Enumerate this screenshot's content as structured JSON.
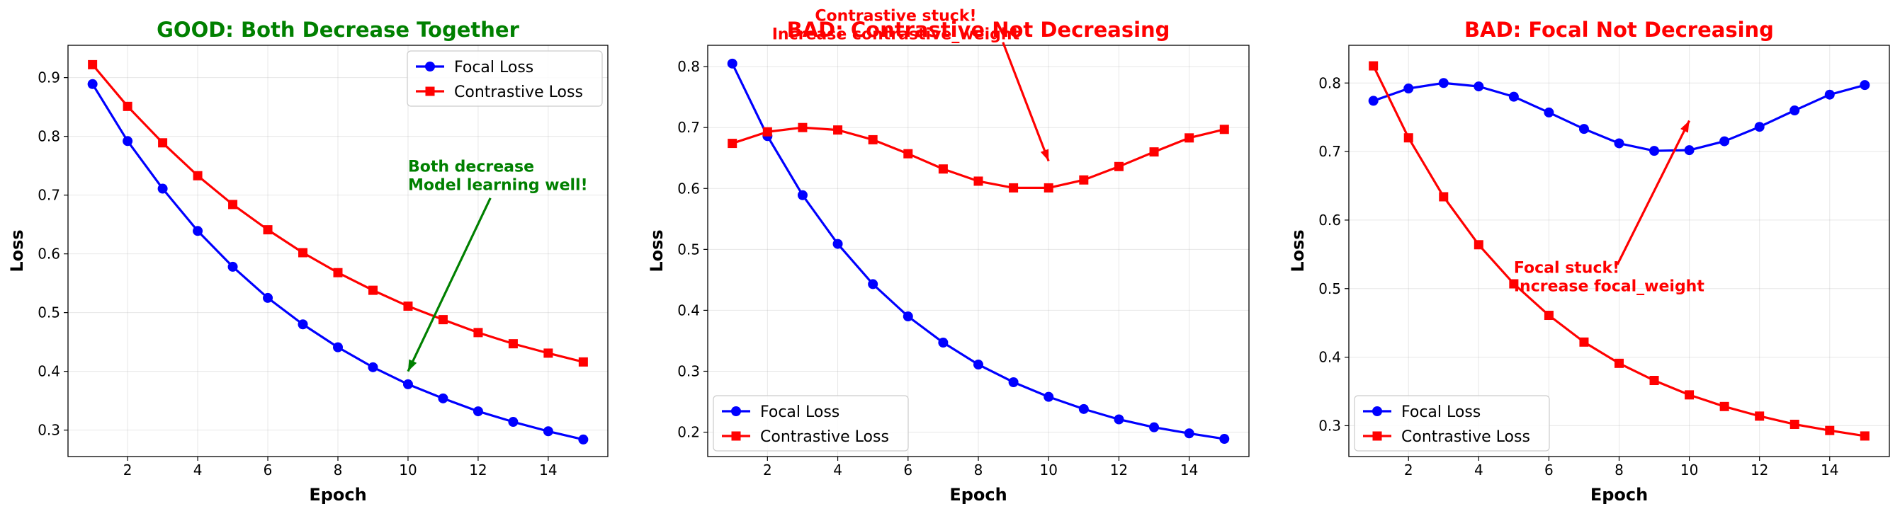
{
  "chart_data": [
    {
      "type": "line",
      "title": "GOOD: Both Decrease Together",
      "title_color": "#008000",
      "xlabel": "Epoch",
      "ylabel": "Loss",
      "xlim": [
        0.3,
        15.7
      ],
      "ylim": [
        0.255,
        0.955
      ],
      "x_ticks": [
        2,
        4,
        6,
        8,
        10,
        12,
        14
      ],
      "y_ticks": [
        0.3,
        0.4,
        0.5,
        0.6,
        0.7,
        0.8,
        0.9
      ],
      "grid": true,
      "legend_position": "upper right",
      "x": [
        1,
        2,
        3,
        4,
        5,
        6,
        7,
        8,
        9,
        10,
        11,
        12,
        13,
        14,
        15
      ],
      "series": [
        {
          "name": "Focal Loss",
          "color": "#0000ff",
          "marker": "circle",
          "values": [
            0.889,
            0.792,
            0.711,
            0.639,
            0.578,
            0.525,
            0.48,
            0.441,
            0.407,
            0.378,
            0.354,
            0.332,
            0.314,
            0.298,
            0.284
          ]
        },
        {
          "name": "Contrastive Loss",
          "color": "#ff0000",
          "marker": "square",
          "values": [
            0.922,
            0.851,
            0.789,
            0.733,
            0.684,
            0.641,
            0.602,
            0.568,
            0.538,
            0.511,
            0.488,
            0.466,
            0.447,
            0.431,
            0.416
          ]
        }
      ],
      "annotation": {
        "lines": [
          "Both decrease",
          "Model learning well!"
        ],
        "color": "#008000",
        "text_at": [
          10,
          0.74
        ],
        "text_anchor": "start",
        "arrow_from": [
          12.35,
          0.695
        ],
        "arrow_to": [
          10,
          0.4
        ]
      }
    },
    {
      "type": "line",
      "title": "BAD: Contrastive Not Decreasing",
      "title_color": "#ff0000",
      "xlabel": "Epoch",
      "ylabel": "Loss",
      "xlim": [
        0.3,
        15.7
      ],
      "ylim": [
        0.16,
        0.835
      ],
      "x_ticks": [
        2,
        4,
        6,
        8,
        10,
        12,
        14
      ],
      "y_ticks": [
        0.2,
        0.3,
        0.4,
        0.5,
        0.6,
        0.7,
        0.8
      ],
      "grid": true,
      "legend_position": "lower left",
      "x": [
        1,
        2,
        3,
        4,
        5,
        6,
        7,
        8,
        9,
        10,
        11,
        12,
        13,
        14,
        15
      ],
      "series": [
        {
          "name": "Focal Loss",
          "color": "#0000ff",
          "marker": "circle",
          "values": [
            0.805,
            0.686,
            0.589,
            0.509,
            0.443,
            0.39,
            0.347,
            0.311,
            0.282,
            0.258,
            0.238,
            0.221,
            0.208,
            0.198,
            0.189
          ]
        },
        {
          "name": "Contrastive Loss",
          "color": "#ff0000",
          "marker": "square",
          "values": [
            0.674,
            0.693,
            0.7,
            0.696,
            0.68,
            0.657,
            0.632,
            0.612,
            0.601,
            0.601,
            0.614,
            0.636,
            0.66,
            0.683,
            0.697
          ]
        }
      ],
      "annotation": {
        "lines": [
          "Contrastive stuck!",
          "Increase contrastive_weight"
        ],
        "color": "#ff0000",
        "text_at": [
          5.65,
          0.875
        ],
        "text_anchor": "middle",
        "arrow_from": [
          8.7,
          0.84
        ],
        "arrow_to": [
          10,
          0.645
        ]
      }
    },
    {
      "type": "line",
      "title": "BAD: Focal Not Decreasing",
      "title_color": "#ff0000",
      "xlabel": "Epoch",
      "ylabel": "Loss",
      "xlim": [
        0.3,
        15.7
      ],
      "ylim": [
        0.255,
        0.855
      ],
      "x_ticks": [
        2,
        4,
        6,
        8,
        10,
        12,
        14
      ],
      "y_ticks": [
        0.3,
        0.4,
        0.5,
        0.6,
        0.7,
        0.8
      ],
      "grid": true,
      "legend_position": "lower left",
      "x": [
        1,
        2,
        3,
        4,
        5,
        6,
        7,
        8,
        9,
        10,
        11,
        12,
        13,
        14,
        15
      ],
      "series": [
        {
          "name": "Focal Loss",
          "color": "#0000ff",
          "marker": "circle",
          "values": [
            0.774,
            0.792,
            0.8,
            0.795,
            0.78,
            0.757,
            0.733,
            0.712,
            0.701,
            0.702,
            0.715,
            0.736,
            0.76,
            0.783,
            0.797
          ]
        },
        {
          "name": "Contrastive Loss",
          "color": "#ff0000",
          "marker": "square",
          "values": [
            0.825,
            0.72,
            0.634,
            0.564,
            0.507,
            0.461,
            0.422,
            0.391,
            0.366,
            0.345,
            0.328,
            0.314,
            0.302,
            0.293,
            0.285
          ]
        }
      ],
      "annotation": {
        "lines": [
          "Focal stuck!",
          "Increase focal_weight"
        ],
        "color": "#ff0000",
        "text_at": [
          5,
          0.523
        ],
        "text_anchor": "start",
        "arrow_from": [
          7.95,
          0.535
        ],
        "arrow_to": [
          10,
          0.745
        ]
      }
    }
  ]
}
